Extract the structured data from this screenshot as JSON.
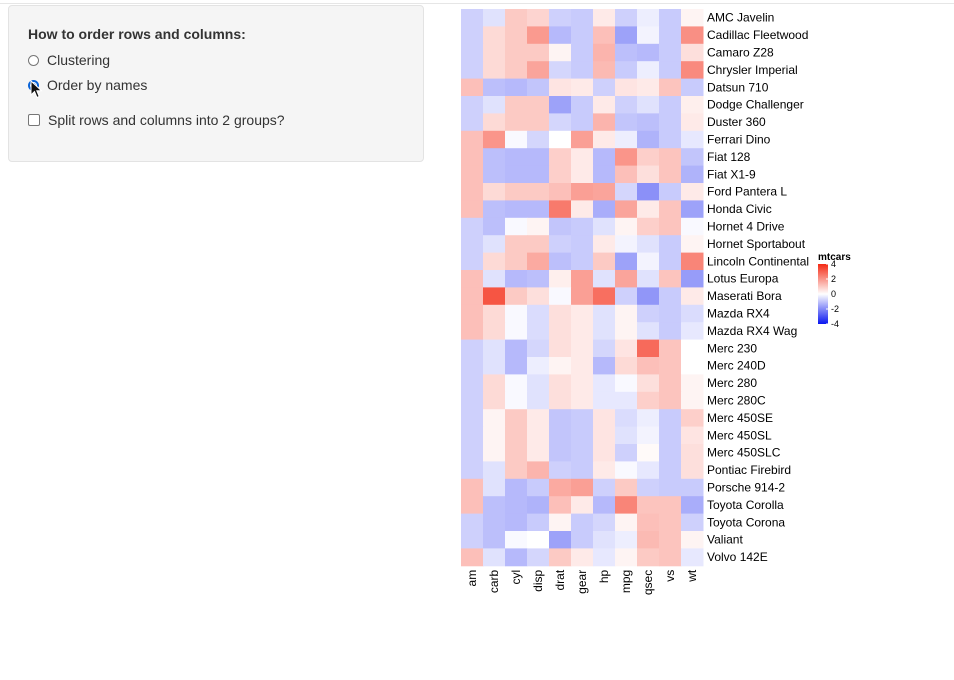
{
  "controls": {
    "heading": "How to order rows and columns:",
    "radio_options": [
      {
        "label": "Clustering",
        "checked": false
      },
      {
        "label": "Order by names",
        "checked": true
      }
    ],
    "checkbox_label": "Split rows and columns into 2 groups?",
    "checkbox_checked": false
  },
  "chart_data": {
    "type": "heatmap",
    "legend_title": "mtcars",
    "legend_ticks": [
      4,
      2,
      0,
      -2,
      -4
    ],
    "color_scale": {
      "low": "#0a16f0",
      "mid": "#ffffff",
      "high": "#f42a14",
      "min": -4,
      "max": 4
    },
    "columns": [
      "am",
      "carb",
      "cyl",
      "disp",
      "drat",
      "gear",
      "hp",
      "mpg",
      "qsec",
      "vs",
      "wt"
    ],
    "rows": [
      "AMC Javelin",
      "Cadillac Fleetwood",
      "Camaro Z28",
      "Chrysler Imperial",
      "Datsun 710",
      "Dodge Challenger",
      "Duster 360",
      "Ferrari Dino",
      "Fiat 128",
      "Fiat X1-9",
      "Ford Pantera L",
      "Honda Civic",
      "Hornet 4 Drive",
      "Hornet Sportabout",
      "Lincoln Continental",
      "Lotus Europa",
      "Maserati Bora",
      "Mazda RX4",
      "Mazda RX4 Wag",
      "Merc 230",
      "Merc 240D",
      "Merc 280",
      "Merc 280C",
      "Merc 450SE",
      "Merc 450SL",
      "Merc 450SLC",
      "Pontiac Firebird",
      "Porsche 914-2",
      "Toyota Corolla",
      "Toyota Corona",
      "Valiant",
      "Volvo 142E"
    ],
    "values": [
      [
        -0.8,
        -0.5,
        1.0,
        0.8,
        -0.8,
        -0.9,
        0.4,
        -0.8,
        -0.3,
        -0.9,
        0.2
      ],
      [
        -0.8,
        0.7,
        1.0,
        1.9,
        -1.2,
        -0.9,
        1.2,
        -1.6,
        -0.2,
        -0.9,
        2.1
      ],
      [
        -0.8,
        0.7,
        1.0,
        1.0,
        0.2,
        -0.9,
        1.4,
        -1.1,
        -1.2,
        -0.9,
        0.6
      ],
      [
        -0.8,
        0.7,
        1.0,
        1.7,
        -0.7,
        -0.9,
        1.3,
        -0.9,
        -0.3,
        -0.9,
        2.2
      ],
      [
        1.2,
        -1.1,
        -1.2,
        -1.0,
        0.5,
        0.4,
        -0.8,
        0.5,
        0.4,
        1.1,
        -0.9
      ],
      [
        -0.8,
        -0.5,
        1.0,
        1.0,
        -1.6,
        -0.9,
        0.4,
        -0.8,
        -0.5,
        -0.9,
        0.3
      ],
      [
        -0.8,
        0.7,
        1.0,
        1.0,
        -0.7,
        -0.9,
        1.4,
        -1.0,
        -1.1,
        -0.9,
        0.4
      ],
      [
        1.2,
        2.0,
        -0.1,
        -0.7,
        0.0,
        1.8,
        0.4,
        -0.3,
        -1.3,
        -0.9,
        -0.4
      ],
      [
        1.2,
        -1.1,
        -1.2,
        -1.2,
        0.9,
        0.4,
        -1.2,
        2.0,
        0.9,
        1.1,
        -1.0
      ],
      [
        1.2,
        -1.1,
        -1.2,
        -1.2,
        0.9,
        0.4,
        -1.2,
        1.2,
        0.6,
        1.1,
        -1.3
      ],
      [
        1.2,
        0.7,
        1.0,
        1.0,
        1.2,
        1.8,
        1.7,
        -0.7,
        -1.9,
        -0.9,
        0.4
      ],
      [
        1.2,
        -1.1,
        -1.2,
        -1.2,
        2.5,
        0.4,
        -1.4,
        1.7,
        0.4,
        1.1,
        -1.6
      ],
      [
        -0.8,
        -1.1,
        -0.1,
        0.2,
        -1.0,
        -0.9,
        -0.5,
        0.2,
        0.9,
        1.1,
        -0.1
      ],
      [
        -0.8,
        -0.5,
        1.0,
        1.0,
        -0.8,
        -0.9,
        0.4,
        -0.2,
        -0.5,
        -0.9,
        0.2
      ],
      [
        -0.8,
        0.7,
        1.0,
        1.6,
        -1.1,
        -0.9,
        1.0,
        -1.6,
        -0.2,
        -0.9,
        2.3
      ],
      [
        1.2,
        -0.5,
        -1.2,
        -1.1,
        0.3,
        1.8,
        -0.5,
        1.7,
        -0.5,
        1.1,
        -1.7
      ],
      [
        1.2,
        3.2,
        1.0,
        0.6,
        -0.1,
        1.8,
        2.7,
        -0.8,
        -1.8,
        -0.9,
        0.4
      ],
      [
        1.2,
        0.7,
        -0.1,
        -0.6,
        0.6,
        0.4,
        -0.5,
        0.2,
        -0.8,
        -0.9,
        -0.6
      ],
      [
        1.2,
        0.7,
        -0.1,
        -0.6,
        0.6,
        0.4,
        -0.5,
        0.2,
        -0.5,
        -0.9,
        -0.4
      ],
      [
        -0.8,
        -0.5,
        -1.2,
        -0.7,
        0.6,
        0.4,
        -0.7,
        0.5,
        2.8,
        1.1,
        0.0
      ],
      [
        -0.8,
        -0.5,
        -1.2,
        -0.3,
        0.2,
        0.4,
        -1.2,
        0.7,
        1.2,
        1.1,
        0.0
      ],
      [
        -0.8,
        0.7,
        -0.1,
        -0.5,
        0.6,
        0.4,
        -0.4,
        -0.1,
        0.6,
        1.1,
        0.2
      ],
      [
        -0.8,
        0.7,
        -0.1,
        -0.5,
        0.6,
        0.4,
        -0.4,
        -0.4,
        0.9,
        1.1,
        0.2
      ],
      [
        -0.8,
        0.2,
        1.0,
        0.4,
        -1.0,
        -0.9,
        0.5,
        -0.6,
        -0.3,
        -0.9,
        0.9
      ],
      [
        -0.8,
        0.2,
        1.0,
        0.4,
        -1.0,
        -0.9,
        0.5,
        -0.5,
        -0.2,
        -0.9,
        0.5
      ],
      [
        -0.8,
        0.2,
        1.0,
        0.4,
        -1.0,
        -0.9,
        0.5,
        -0.8,
        0.1,
        -0.9,
        0.6
      ],
      [
        -0.8,
        -0.5,
        1.0,
        1.4,
        -0.8,
        -0.9,
        0.4,
        -0.1,
        -0.4,
        -0.9,
        0.6
      ],
      [
        1.2,
        -0.5,
        -1.2,
        -0.9,
        1.6,
        1.8,
        -0.8,
        1.0,
        -0.8,
        -0.9,
        -0.9
      ],
      [
        1.2,
        -1.1,
        -1.2,
        -1.3,
        1.2,
        0.4,
        -1.2,
        2.3,
        1.1,
        1.1,
        -1.4
      ],
      [
        -0.8,
        -1.1,
        -1.2,
        -0.9,
        0.2,
        -0.9,
        -0.7,
        0.2,
        1.2,
        1.1,
        -0.8
      ],
      [
        -0.8,
        -1.1,
        -0.1,
        -0.0,
        -1.6,
        -0.9,
        -0.5,
        -0.3,
        1.3,
        1.1,
        0.2
      ],
      [
        1.2,
        -0.5,
        -1.2,
        -0.7,
        1.0,
        0.4,
        -0.4,
        0.2,
        1.0,
        1.1,
        -0.4
      ]
    ]
  }
}
